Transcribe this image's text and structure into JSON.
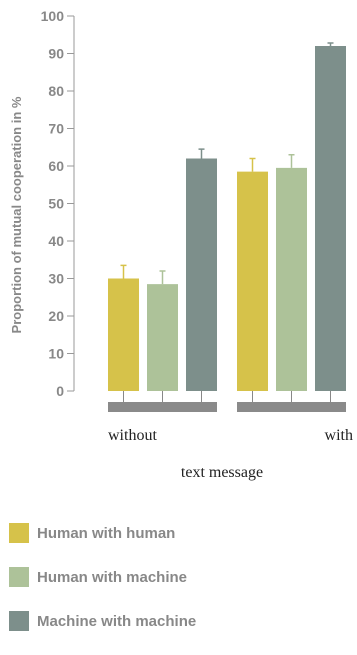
{
  "chart_data": {
    "type": "bar",
    "title": "",
    "ylabel": "Proportion of mutual cooperation in %",
    "xlabel": "text message",
    "ylim": [
      0,
      100
    ],
    "yticks": [
      0,
      10,
      20,
      30,
      40,
      50,
      60,
      70,
      80,
      90,
      100
    ],
    "categories": [
      "without",
      "with"
    ],
    "series": [
      {
        "name": "Human with human",
        "color": "#d6c24a",
        "values": [
          30,
          58.5
        ],
        "errors": [
          3.5,
          3.5
        ]
      },
      {
        "name": "Human with machine",
        "color": "#adc299",
        "values": [
          28.5,
          59.5
        ],
        "errors": [
          3.5,
          3.5
        ]
      },
      {
        "name": "Machine with machine",
        "color": "#7d8f8b",
        "values": [
          62,
          92
        ],
        "errors": [
          2.5,
          0.8
        ]
      }
    ],
    "grid": false,
    "legend_position": "bottom"
  }
}
